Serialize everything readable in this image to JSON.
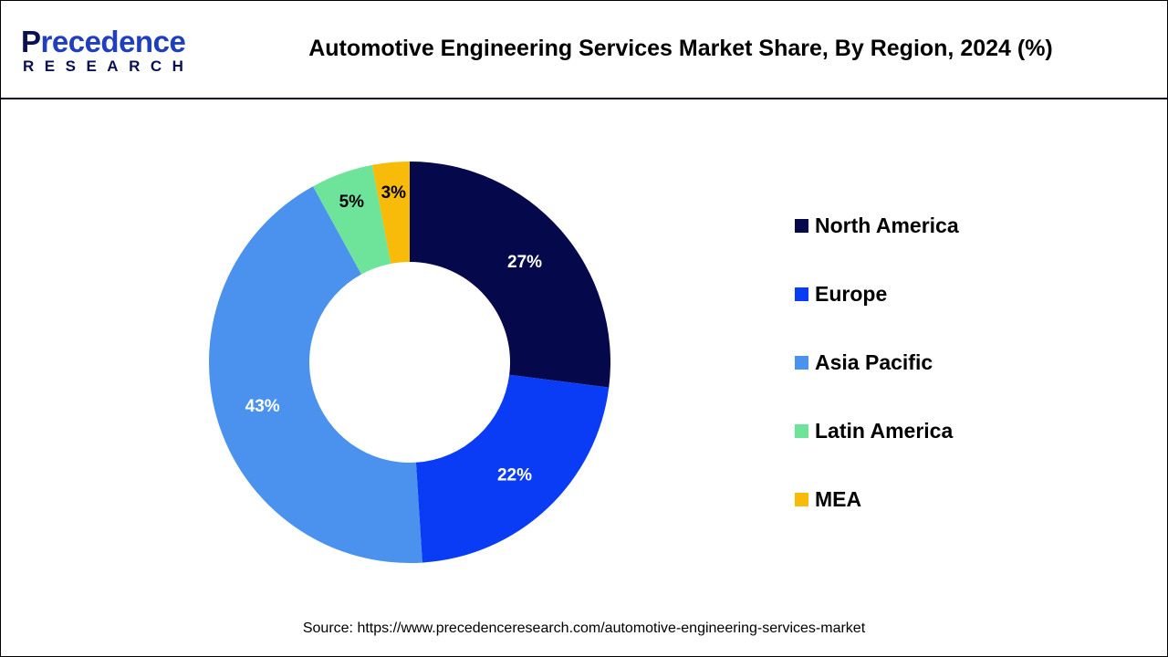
{
  "logo": {
    "text_top_first": "P",
    "text_top_rest": "recedence",
    "text_bottom": "RESEARCH"
  },
  "chart_data": {
    "type": "pie",
    "donut": true,
    "title": "Automotive Engineering Services Market Share, By Region, 2024 (%)",
    "categories": [
      "North America",
      "Europe",
      "Asia Pacific",
      "Latin America",
      "MEA"
    ],
    "values": [
      27,
      22,
      43,
      5,
      3
    ],
    "data_labels": [
      "27%",
      "22%",
      "43%",
      "5%",
      "3%"
    ],
    "colors": [
      "#05084a",
      "#0a3cf5",
      "#4a92ee",
      "#6ee39a",
      "#f8bb0a"
    ],
    "label_colors": [
      "#ffffff",
      "#ffffff",
      "#ffffff",
      "#000000",
      "#000000"
    ],
    "legend_position": "right"
  },
  "source": "Source: https://www.precedenceresearch.com/automotive-engineering-services-market"
}
